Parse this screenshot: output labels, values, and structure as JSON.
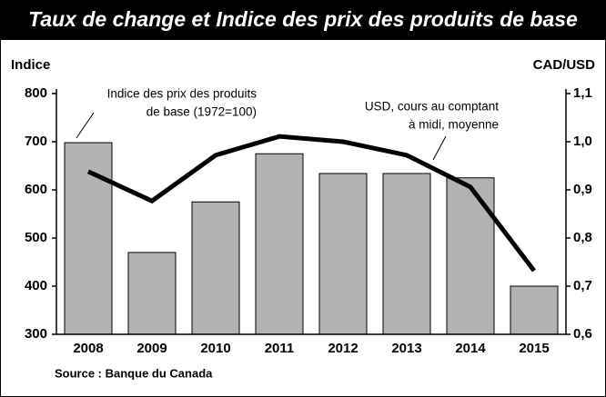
{
  "chart_data": {
    "type": "bar",
    "title": "Taux de change et Indice des prix des produits de base",
    "ylabel": "Indice",
    "y2label": "CAD/USD",
    "categories": [
      "2008",
      "2009",
      "2010",
      "2011",
      "2012",
      "2013",
      "2014",
      "2015"
    ],
    "series": [
      {
        "type": "bar",
        "label": [
          "Indice des prix des produits",
          "de base (1972=100)"
        ],
        "color": "#b3b3b3",
        "values": [
          698,
          470,
          575,
          675,
          634,
          634,
          625,
          400
        ]
      },
      {
        "type": "line",
        "axis": "y2",
        "label": [
          "USD, cours au comptant",
          "à midi, moyenne"
        ],
        "color": "#000000",
        "values": [
          0.938,
          0.877,
          0.972,
          1.011,
          1.0,
          0.972,
          0.906,
          0.732
        ]
      }
    ],
    "ylim": [
      300,
      800
    ],
    "yticks": [
      300,
      400,
      500,
      600,
      700,
      800
    ],
    "y2lim": [
      0.6,
      1.1
    ],
    "y2ticks": [
      {
        "value": 0.6,
        "label": "0,6"
      },
      {
        "value": 0.7,
        "label": "0,7"
      },
      {
        "value": 0.8,
        "label": "0,8"
      },
      {
        "value": 0.9,
        "label": "0,9"
      },
      {
        "value": 1.0,
        "label": "1,0"
      },
      {
        "value": 1.1,
        "label": "1,1"
      }
    ],
    "source": "Source : Banque du Canada"
  }
}
